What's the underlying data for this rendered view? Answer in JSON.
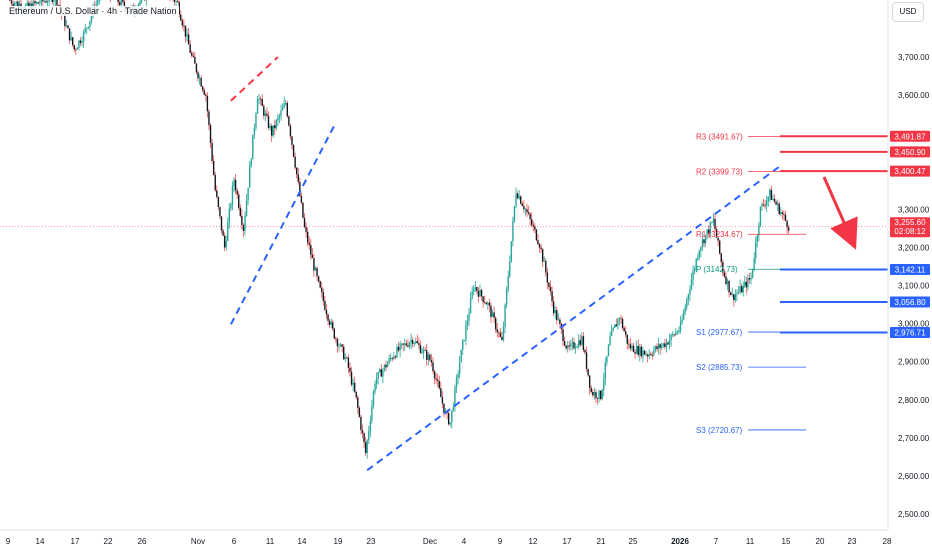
{
  "title": "Ethereum / U.S. Dollar · 4h · Trade Nation",
  "currency": "USD",
  "chart_data": {
    "type": "candlestick",
    "y_axis": {
      "ticks": [
        "2,500.00",
        "2,600.00",
        "2,700.00",
        "2,800.00",
        "2,900.00",
        "3,000.00",
        "3,100.00",
        "3,200.00",
        "3,300.00",
        "3,600.00",
        "3,700.00"
      ],
      "range": [
        2480,
        3800
      ]
    },
    "x_axis": {
      "ticks": [
        "9",
        "14",
        "17",
        "22",
        "26",
        "Nov",
        "6",
        "11",
        "14",
        "19",
        "23",
        "Dec",
        "4",
        "9",
        "12",
        "17",
        "21",
        "25",
        "2026",
        "7",
        "11",
        "15",
        "20",
        "23",
        "28"
      ],
      "range_days": [
        0,
        80
      ]
    },
    "price_path": [
      [
        0.0,
        3850
      ],
      [
        2.0,
        3830
      ],
      [
        5.0,
        3860
      ],
      [
        7.0,
        3720
      ],
      [
        8.0,
        3760
      ],
      [
        10.0,
        3880
      ],
      [
        13.0,
        3820
      ],
      [
        16.0,
        3900
      ],
      [
        18.0,
        3840
      ],
      [
        19.5,
        3700
      ],
      [
        21.0,
        3600
      ],
      [
        22.0,
        3350
      ],
      [
        23.0,
        3200
      ],
      [
        24.0,
        3380
      ],
      [
        25.0,
        3250
      ],
      [
        26.5,
        3600
      ],
      [
        28.0,
        3500
      ],
      [
        29.5,
        3580
      ],
      [
        30.5,
        3420
      ],
      [
        31.5,
        3250
      ],
      [
        33.0,
        3100
      ],
      [
        34.5,
        2980
      ],
      [
        36.0,
        2900
      ],
      [
        37.0,
        2800
      ],
      [
        38.0,
        2660
      ],
      [
        39.0,
        2850
      ],
      [
        41.0,
        2920
      ],
      [
        43.0,
        2960
      ],
      [
        45.0,
        2900
      ],
      [
        46.5,
        2760
      ],
      [
        47.0,
        2740
      ],
      [
        48.0,
        2900
      ],
      [
        49.5,
        3100
      ],
      [
        51.0,
        3050
      ],
      [
        52.5,
        2950
      ],
      [
        54.0,
        3350
      ],
      [
        55.0,
        3300
      ],
      [
        56.5,
        3210
      ],
      [
        58.0,
        3040
      ],
      [
        59.5,
        2930
      ],
      [
        61.0,
        2960
      ],
      [
        62.0,
        2820
      ],
      [
        63.0,
        2810
      ],
      [
        64.0,
        2960
      ],
      [
        65.0,
        3020
      ],
      [
        66.0,
        2940
      ],
      [
        68.0,
        2920
      ],
      [
        70.0,
        2950
      ],
      [
        71.5,
        2990
      ],
      [
        72.5,
        3100
      ],
      [
        73.5,
        3200
      ],
      [
        75.0,
        3270
      ],
      [
        76.0,
        3140
      ],
      [
        77.0,
        3070
      ],
      [
        78.0,
        3090
      ],
      [
        79.0,
        3120
      ],
      [
        80.0,
        3300
      ],
      [
        81.0,
        3340
      ],
      [
        82.0,
        3300
      ],
      [
        83.0,
        3256
      ]
    ],
    "pivots": [
      {
        "label": "R3 (3491.67)",
        "value": 3491.67,
        "color": "#f23645"
      },
      {
        "label": "R2 (3399.73)",
        "value": 3399.73,
        "color": "#f23645"
      },
      {
        "label": "R1 (3234.67)",
        "value": 3234.67,
        "color": "#f23645"
      },
      {
        "label": "P (3142.73)",
        "value": 3142.73,
        "color": "#089981"
      },
      {
        "label": "S1 (2977.67)",
        "value": 2977.67,
        "color": "#2962ff"
      },
      {
        "label": "S2 (2885.73)",
        "value": 2885.73,
        "color": "#2962ff"
      },
      {
        "label": "S3 (2720.67)",
        "value": 2720.67,
        "color": "#2962ff"
      }
    ],
    "levels": [
      {
        "label": "3,491.87",
        "value": 3491.87,
        "color": "#f23645"
      },
      {
        "label": "3,450.90",
        "value": 3450.9,
        "color": "#f23645"
      },
      {
        "label": "3,400.47",
        "value": 3400.47,
        "color": "#f23645"
      },
      {
        "label": "3,142.11",
        "value": 3142.11,
        "color": "#2962ff"
      },
      {
        "label": "3,056.80",
        "value": 3056.8,
        "color": "#2962ff"
      },
      {
        "label": "2,976.71",
        "value": 2976.71,
        "color": "#2962ff"
      }
    ],
    "current_price": {
      "label": "3,255.60",
      "countdown": "02:08:12",
      "value": 3255.6,
      "color": "#f23645"
    },
    "trendlines": [
      {
        "from": [
          23.5,
          3585
        ],
        "to": [
          28.5,
          3700
        ],
        "color": "#f23645"
      },
      {
        "from": [
          23.5,
          2998
        ],
        "to": [
          34.5,
          3520
        ],
        "color": "#2962ff"
      },
      {
        "from": [
          38.0,
          2615
        ],
        "to": [
          82.0,
          3415
        ],
        "color": "#2962ff"
      }
    ],
    "grid": false,
    "legend": "none"
  }
}
